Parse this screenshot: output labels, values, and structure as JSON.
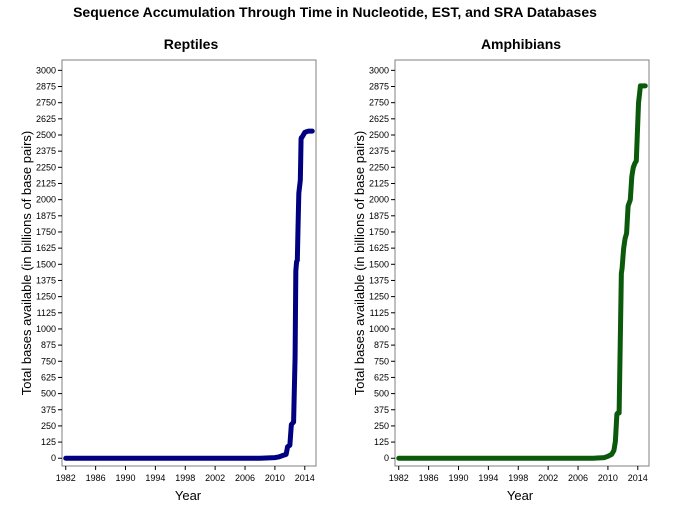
{
  "figure": {
    "title": "Sequence Accumulation Through Time in Nucleotide, EST, and SRA Databases"
  },
  "chart_data": [
    {
      "type": "line",
      "title": "Reptiles",
      "xlabel": "Year",
      "ylabel": "Total bases available (in billions of base pairs)",
      "xlim": [
        1981.5,
        2015.5
      ],
      "ylim": [
        -60,
        3080
      ],
      "xticks": [
        1982,
        1986,
        1990,
        1994,
        1998,
        2002,
        2006,
        2010,
        2014
      ],
      "xtick_labels": [
        "1982",
        "1986",
        "1990",
        "1994",
        "1998",
        "2002",
        "2006",
        "2010",
        "2014"
      ],
      "yticks": [
        0,
        125,
        250,
        375,
        500,
        625,
        750,
        875,
        1000,
        1125,
        1250,
        1375,
        1500,
        1625,
        1750,
        1875,
        2000,
        2125,
        2250,
        2375,
        2500,
        2625,
        2750,
        2875,
        3000
      ],
      "ytick_labels": [
        "0",
        "125",
        "250",
        "375",
        "500",
        "625",
        "750",
        "875",
        "1000",
        "1125",
        "1250",
        "1375",
        "1500",
        "1625",
        "1750",
        "1875",
        "2000",
        "2125",
        "2250",
        "2375",
        "2500",
        "2625",
        "2750",
        "2875",
        "3000"
      ],
      "grid": false,
      "color": "#000080",
      "series": [
        {
          "x": [
            1982,
            1990,
            2000,
            2008,
            2010,
            2010.5,
            2011,
            2011.5,
            2011.7,
            2012.0,
            2012.2,
            2012.5,
            2012.7,
            2012.8,
            2012.9,
            2013.0,
            2013.1,
            2013.2,
            2013.3,
            2013.4,
            2013.45,
            2013.5,
            2013.55,
            2013.6,
            2013.7,
            2013.8,
            2013.9,
            2014.0,
            2014.2,
            2014.5,
            2015.0
          ],
          "y": [
            0,
            0,
            0,
            0,
            5,
            10,
            20,
            30,
            90,
            100,
            260,
            280,
            780,
            1450,
            1520,
            1530,
            1800,
            2050,
            2100,
            2150,
            2300,
            2470,
            2480,
            2480,
            2490,
            2500,
            2510,
            2520,
            2525,
            2530,
            2530
          ]
        }
      ]
    },
    {
      "type": "line",
      "title": "Amphibians",
      "xlabel": "Year",
      "ylabel": "Total bases available (in billions of base pairs)",
      "xlim": [
        1981.5,
        2015.5
      ],
      "ylim": [
        -60,
        3080
      ],
      "xticks": [
        1982,
        1986,
        1990,
        1994,
        1998,
        2002,
        2006,
        2010,
        2014
      ],
      "xtick_labels": [
        "1982",
        "1986",
        "1990",
        "1994",
        "1998",
        "2002",
        "2006",
        "2010",
        "2014"
      ],
      "yticks": [
        0,
        125,
        250,
        375,
        500,
        625,
        750,
        875,
        1000,
        1125,
        1250,
        1375,
        1500,
        1625,
        1750,
        1875,
        2000,
        2125,
        2250,
        2375,
        2500,
        2625,
        2750,
        2875,
        3000
      ],
      "ytick_labels": [
        "0",
        "125",
        "250",
        "375",
        "500",
        "625",
        "750",
        "875",
        "1000",
        "1125",
        "1250",
        "1375",
        "1500",
        "1625",
        "1750",
        "1875",
        "2000",
        "2125",
        "2250",
        "2375",
        "2500",
        "2625",
        "2750",
        "2875",
        "3000"
      ],
      "grid": false,
      "color": "#0b5a0b",
      "series": [
        {
          "x": [
            1982,
            1990,
            2000,
            2008,
            2009.5,
            2010.0,
            2010.5,
            2010.8,
            2011.0,
            2011.2,
            2011.3,
            2011.5,
            2011.8,
            2011.9,
            2012.1,
            2012.3,
            2012.5,
            2012.7,
            2013.0,
            2013.2,
            2013.4,
            2013.6,
            2013.8,
            2014.0,
            2014.1,
            2014.2,
            2014.35,
            2014.5,
            2014.7,
            2015.0
          ],
          "y": [
            0,
            0,
            0,
            0,
            5,
            15,
            30,
            60,
            130,
            340,
            350,
            350,
            1430,
            1470,
            1620,
            1700,
            1740,
            1950,
            2000,
            2180,
            2250,
            2280,
            2300,
            2600,
            2750,
            2800,
            2880,
            2880,
            2880,
            2880
          ]
        }
      ]
    }
  ]
}
